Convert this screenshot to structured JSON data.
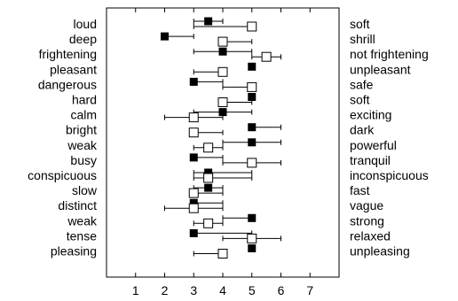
{
  "chart_data": {
    "type": "scatter",
    "title": "",
    "xlabel": "",
    "ylabel": "",
    "xlim": [
      0,
      8
    ],
    "x_ticks": [
      1,
      2,
      3,
      4,
      5,
      6,
      7
    ],
    "grid": false,
    "left_labels": [
      "loud",
      "deep",
      "frightening",
      "pleasant",
      "dangerous",
      "hard",
      "calm",
      "bright",
      "weak",
      "busy",
      "conspicuous",
      "slow",
      "distinct",
      "weak",
      "tense",
      "pleasing"
    ],
    "right_labels": [
      "soft",
      "shrill",
      "not frightening",
      "unpleasant",
      "safe",
      "soft",
      "exciting",
      "dark",
      "powerful",
      "tranquil",
      "inconspicuous",
      "fast",
      "vague",
      "strong",
      "relaxed",
      "unpleasing"
    ],
    "series": [
      {
        "marker": "filled-square",
        "values": [
          3.5,
          2.0,
          4.0,
          5.0,
          3.0,
          5.0,
          4.0,
          5.0,
          5.0,
          3.0,
          3.5,
          3.5,
          3.0,
          5.0,
          3.0,
          5.0
        ],
        "error_low": [
          3.0,
          2.0,
          3.0,
          5.0,
          3.0,
          5.0,
          3.0,
          5.0,
          4.0,
          3.0,
          3.0,
          3.0,
          3.0,
          4.0,
          3.0,
          5.0
        ],
        "error_high": [
          4.0,
          3.0,
          5.0,
          5.0,
          4.0,
          5.0,
          5.0,
          6.0,
          6.0,
          4.0,
          5.0,
          4.0,
          4.0,
          5.0,
          5.0,
          5.0
        ],
        "color": "#000000"
      },
      {
        "marker": "open-square",
        "values": [
          5.0,
          4.0,
          5.5,
          4.0,
          5.0,
          4.0,
          3.0,
          3.0,
          3.5,
          5.0,
          3.5,
          3.0,
          3.0,
          3.5,
          5.0,
          4.0
        ],
        "error_low": [
          3.0,
          4.0,
          5.0,
          3.0,
          4.0,
          4.0,
          2.0,
          3.0,
          3.0,
          4.0,
          3.0,
          3.0,
          2.0,
          3.0,
          4.0,
          3.0
        ],
        "error_high": [
          5.0,
          5.0,
          6.0,
          4.0,
          5.0,
          5.0,
          4.0,
          4.0,
          4.0,
          6.0,
          5.0,
          4.0,
          4.0,
          4.0,
          6.0,
          4.0
        ],
        "color": "#000000"
      }
    ]
  }
}
